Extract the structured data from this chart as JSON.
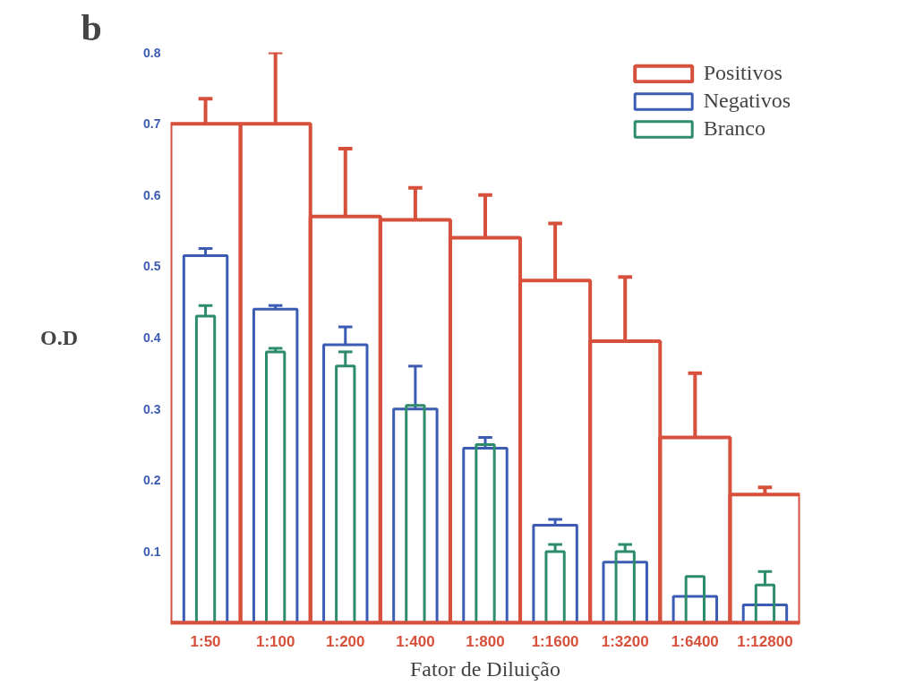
{
  "chart_data": {
    "type": "bar",
    "xlabel": "Fator de Diluição",
    "ylabel": "O.D",
    "annotations": [
      "b"
    ],
    "categories": [
      "1:50",
      "1:100",
      "1:200",
      "1:400",
      "1:800",
      "1:1600",
      "1:3200",
      "1:6400",
      "1:12800"
    ],
    "series": [
      {
        "name": "Positivos",
        "color": "#d6503c",
        "values": [
          0.7,
          0.7,
          0.57,
          0.565,
          0.54,
          0.48,
          0.395,
          0.26,
          0.18
        ],
        "errors": [
          [
            0.7,
            0.735
          ],
          [
            0.7,
            0.8
          ],
          [
            0.57,
            0.665
          ],
          [
            0.565,
            0.61
          ],
          [
            0.54,
            0.6
          ],
          [
            0.48,
            0.56
          ],
          [
            0.395,
            0.485
          ],
          [
            0.26,
            0.35
          ],
          [
            0.18,
            0.19
          ]
        ]
      },
      {
        "name": "Negativos",
        "color": "#3c5cb4",
        "values": [
          0.515,
          0.44,
          0.39,
          0.3,
          0.245,
          0.137,
          0.085,
          0.037,
          0.025
        ],
        "errors": [
          [
            0.515,
            0.525
          ],
          [
            0.44,
            0.445
          ],
          [
            0.39,
            0.415
          ],
          [
            0.3,
            0.36
          ],
          [
            0.245,
            0.26
          ],
          [
            0.137,
            0.145
          ],
          null,
          null,
          null
        ]
      },
      {
        "name": "Branco",
        "color": "#2d8c6a",
        "values": [
          0.43,
          0.38,
          0.36,
          0.305,
          0.25,
          0.1,
          0.1,
          0.065,
          0.053
        ],
        "errors": [
          [
            0.43,
            0.445
          ],
          [
            0.38,
            0.385
          ],
          [
            0.36,
            0.38
          ],
          null,
          null,
          [
            0.1,
            0.11
          ],
          [
            0.1,
            0.11
          ],
          null,
          [
            0.053,
            0.072
          ]
        ]
      }
    ],
    "ylim": [
      0,
      0.8
    ],
    "yticks": [
      0.1,
      0.2,
      0.3,
      0.4,
      0.5,
      0.6,
      0.7,
      0.8
    ],
    "grid": false,
    "legend": "top right"
  }
}
